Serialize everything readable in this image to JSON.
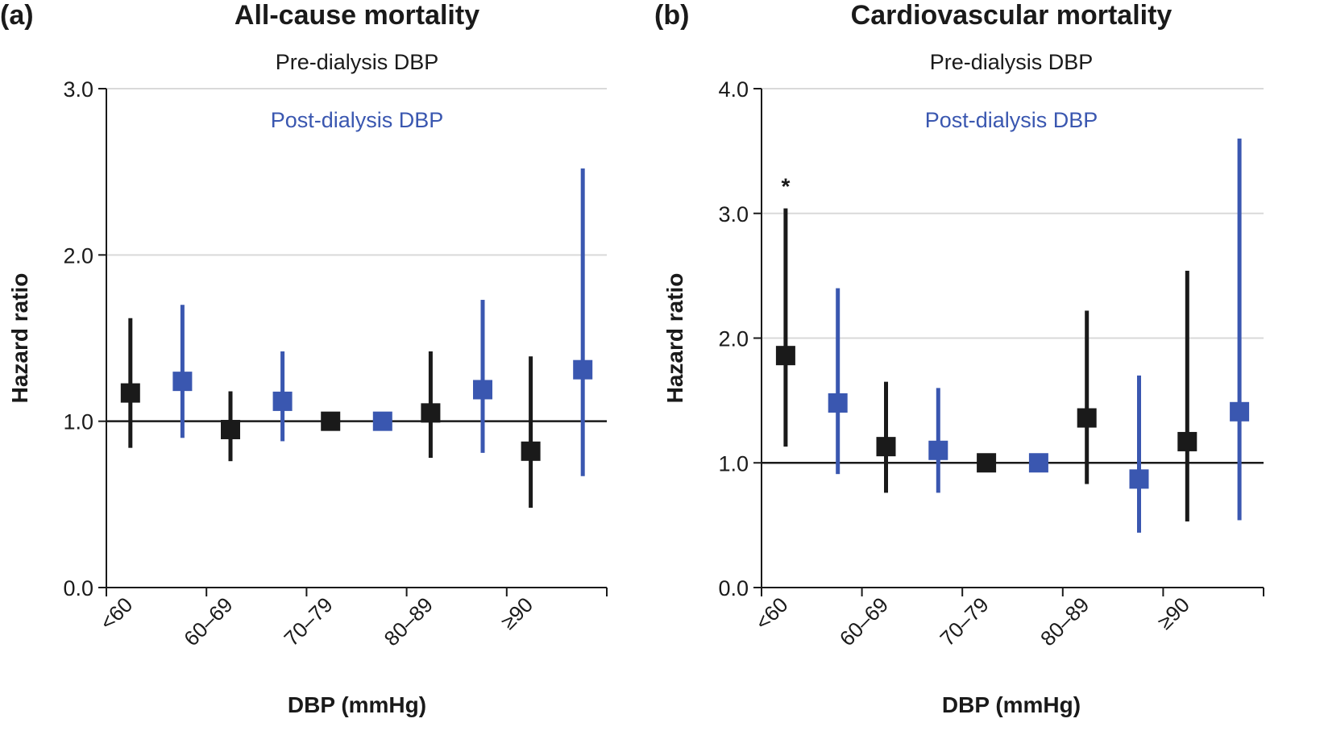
{
  "figure": {
    "panels": [
      {
        "label": "(a)",
        "title": "All-cause mortality"
      },
      {
        "label": "(b)",
        "title": "Cardiovascular mortality"
      }
    ],
    "colors": {
      "pre": "#1a1a1a",
      "post": "#3a57b0",
      "grid": "#d9d9d9",
      "axis": "#1a1a1a"
    }
  },
  "chart_data": [
    {
      "type": "scatter",
      "subtype": "forest-plot",
      "title": "All-cause mortality",
      "xlabel": "DBP (mmHg)",
      "ylabel": "Hazard ratio",
      "ylim": [
        0,
        3
      ],
      "yticks": [
        "0.0",
        "1.0",
        "2.0",
        "3.0"
      ],
      "categories": [
        "<60",
        "60–69",
        "70–79",
        "80–89",
        "≥90"
      ],
      "reference_line": 1.0,
      "series": [
        {
          "name": "Pre-dialysis DBP",
          "color": "#1a1a1a",
          "values": [
            1.17,
            0.95,
            1.0,
            1.05,
            0.82
          ],
          "lower": [
            0.84,
            0.76,
            1.0,
            0.78,
            0.48
          ],
          "upper": [
            1.62,
            1.18,
            1.0,
            1.42,
            1.39
          ]
        },
        {
          "name": "Post-dialysis DBP",
          "color": "#3a57b0",
          "values": [
            1.24,
            1.12,
            1.0,
            1.19,
            1.31
          ],
          "lower": [
            0.9,
            0.88,
            1.0,
            0.81,
            0.67
          ],
          "upper": [
            1.7,
            1.42,
            1.0,
            1.73,
            2.52
          ]
        }
      ],
      "annotations": []
    },
    {
      "type": "scatter",
      "subtype": "forest-plot",
      "title": "Cardiovascular mortality",
      "xlabel": "DBP (mmHg)",
      "ylabel": "Hazard ratio",
      "ylim": [
        0,
        4
      ],
      "yticks": [
        "0.0",
        "1.0",
        "2.0",
        "3.0",
        "4.0"
      ],
      "categories": [
        "<60",
        "60–69",
        "70–79",
        "80–89",
        "≥90"
      ],
      "reference_line": 1.0,
      "series": [
        {
          "name": "Pre-dialysis DBP",
          "color": "#1a1a1a",
          "values": [
            1.86,
            1.13,
            1.0,
            1.36,
            1.17
          ],
          "lower": [
            1.13,
            0.76,
            1.0,
            0.83,
            0.53
          ],
          "upper": [
            3.04,
            1.65,
            1.0,
            2.22,
            2.54
          ]
        },
        {
          "name": "Post-dialysis DBP",
          "color": "#3a57b0",
          "values": [
            1.48,
            1.1,
            1.0,
            0.87,
            1.41
          ],
          "lower": [
            0.91,
            0.76,
            1.0,
            0.44,
            0.54
          ],
          "upper": [
            2.4,
            1.6,
            1.0,
            1.7,
            3.6
          ]
        }
      ],
      "annotations": [
        {
          "text": "*",
          "category": "<60",
          "series": "Pre-dialysis DBP"
        }
      ]
    }
  ]
}
